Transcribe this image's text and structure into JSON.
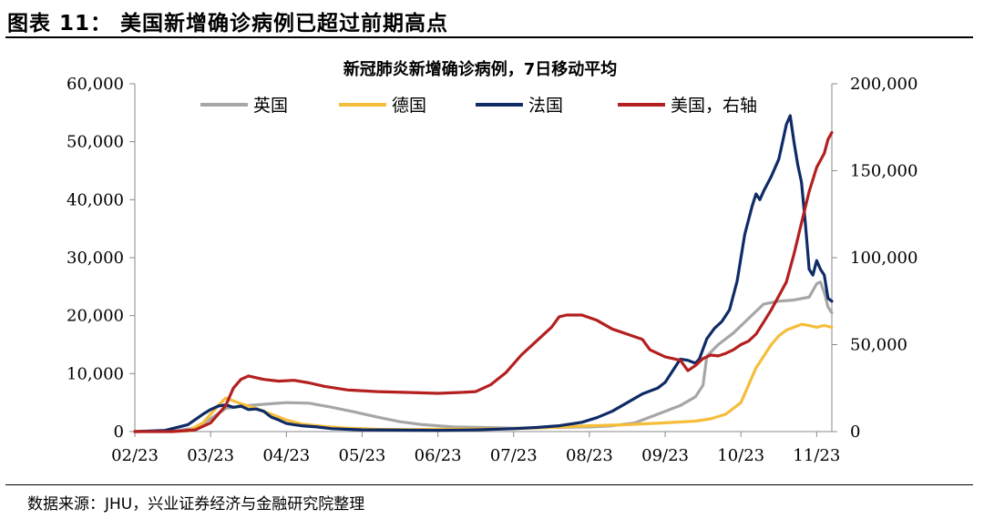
{
  "figure": {
    "title": "图表 11：  美国新增确诊病例已超过前期高点",
    "source": "数据来源：JHU，兴业证券经济与金融研究院整理"
  },
  "chart_data": {
    "type": "line",
    "title": "新冠肺炎新增确诊病例，7日移动平均",
    "xlabel": "",
    "ylabel": "",
    "x_tick_labels": [
      "02/23",
      "03/23",
      "04/23",
      "05/23",
      "06/23",
      "07/23",
      "08/23",
      "09/23",
      "10/23",
      "11/23"
    ],
    "x_ticks_month": [
      0,
      1,
      2,
      3,
      4,
      5,
      6,
      7,
      8,
      9
    ],
    "xlim_month": [
      0,
      9.2
    ],
    "left_ylim": [
      0,
      60000
    ],
    "left_yticks": [
      "0",
      "10,000",
      "20,000",
      "30,000",
      "40,000",
      "50,000",
      "60,000"
    ],
    "right_ylim": [
      0,
      200000
    ],
    "right_yticks": [
      "0",
      "50,000",
      "100,000",
      "150,000",
      "200,000"
    ],
    "grid": false,
    "legend_position": "top",
    "series": [
      {
        "name": "英国",
        "axis": "left",
        "color": "#a6a6a6",
        "points": [
          [
            0,
            0
          ],
          [
            0.5,
            100
          ],
          [
            0.8,
            600
          ],
          [
            1.0,
            2200
          ],
          [
            1.2,
            4000
          ],
          [
            1.5,
            4500
          ],
          [
            1.8,
            4800
          ],
          [
            2.0,
            5000
          ],
          [
            2.3,
            4900
          ],
          [
            2.6,
            4200
          ],
          [
            2.9,
            3400
          ],
          [
            3.2,
            2500
          ],
          [
            3.5,
            1700
          ],
          [
            3.8,
            1200
          ],
          [
            4.2,
            800
          ],
          [
            4.6,
            700
          ],
          [
            5.0,
            600
          ],
          [
            5.5,
            700
          ],
          [
            6.0,
            800
          ],
          [
            6.3,
            1000
          ],
          [
            6.6,
            1500
          ],
          [
            6.8,
            2500
          ],
          [
            7.0,
            3500
          ],
          [
            7.2,
            4500
          ],
          [
            7.4,
            6000
          ],
          [
            7.5,
            8000
          ],
          [
            7.55,
            13000
          ],
          [
            7.7,
            15000
          ],
          [
            7.9,
            17000
          ],
          [
            8.1,
            19500
          ],
          [
            8.3,
            22000
          ],
          [
            8.5,
            22500
          ],
          [
            8.7,
            22700
          ],
          [
            8.9,
            23200
          ],
          [
            9.0,
            25500
          ],
          [
            9.05,
            25800
          ],
          [
            9.1,
            24000
          ],
          [
            9.15,
            21500
          ],
          [
            9.2,
            20500
          ]
        ]
      },
      {
        "name": "德国",
        "axis": "left",
        "color": "#f5bd3a",
        "points": [
          [
            0,
            0
          ],
          [
            0.7,
            100
          ],
          [
            0.9,
            1500
          ],
          [
            1.1,
            4500
          ],
          [
            1.2,
            5800
          ],
          [
            1.4,
            4800
          ],
          [
            1.6,
            4000
          ],
          [
            1.8,
            3000
          ],
          [
            2.0,
            2000
          ],
          [
            2.2,
            1300
          ],
          [
            2.5,
            900
          ],
          [
            2.8,
            600
          ],
          [
            3.2,
            400
          ],
          [
            3.6,
            350
          ],
          [
            4.0,
            400
          ],
          [
            4.5,
            450
          ],
          [
            5.0,
            500
          ],
          [
            5.5,
            700
          ],
          [
            6.0,
            1000
          ],
          [
            6.5,
            1200
          ],
          [
            7.0,
            1500
          ],
          [
            7.4,
            1800
          ],
          [
            7.6,
            2200
          ],
          [
            7.8,
            3000
          ],
          [
            8.0,
            5000
          ],
          [
            8.1,
            8000
          ],
          [
            8.2,
            11000
          ],
          [
            8.3,
            13000
          ],
          [
            8.4,
            15000
          ],
          [
            8.5,
            16500
          ],
          [
            8.6,
            17500
          ],
          [
            8.7,
            18000
          ],
          [
            8.8,
            18500
          ],
          [
            8.9,
            18300
          ],
          [
            9.0,
            18000
          ],
          [
            9.1,
            18300
          ],
          [
            9.2,
            18000
          ]
        ]
      },
      {
        "name": "法国",
        "axis": "left",
        "color": "#0f2b66",
        "points": [
          [
            0,
            0
          ],
          [
            0.4,
            200
          ],
          [
            0.7,
            1200
          ],
          [
            0.9,
            3000
          ],
          [
            1.0,
            3800
          ],
          [
            1.1,
            4400
          ],
          [
            1.2,
            4600
          ],
          [
            1.3,
            4200
          ],
          [
            1.4,
            4400
          ],
          [
            1.5,
            3800
          ],
          [
            1.6,
            3900
          ],
          [
            1.7,
            3500
          ],
          [
            1.8,
            2500
          ],
          [
            1.9,
            2000
          ],
          [
            2.0,
            1400
          ],
          [
            2.1,
            1200
          ],
          [
            2.2,
            1000
          ],
          [
            2.4,
            800
          ],
          [
            2.6,
            500
          ],
          [
            2.8,
            400
          ],
          [
            3.0,
            300
          ],
          [
            3.5,
            250
          ],
          [
            4.0,
            200
          ],
          [
            4.5,
            300
          ],
          [
            5.0,
            500
          ],
          [
            5.3,
            700
          ],
          [
            5.6,
            1000
          ],
          [
            5.9,
            1600
          ],
          [
            6.1,
            2400
          ],
          [
            6.3,
            3500
          ],
          [
            6.5,
            5000
          ],
          [
            6.7,
            6500
          ],
          [
            6.9,
            7500
          ],
          [
            7.0,
            8500
          ],
          [
            7.1,
            10500
          ],
          [
            7.2,
            12500
          ],
          [
            7.3,
            12300
          ],
          [
            7.4,
            11800
          ],
          [
            7.45,
            12500
          ],
          [
            7.55,
            16000
          ],
          [
            7.65,
            17800
          ],
          [
            7.75,
            19000
          ],
          [
            7.85,
            21000
          ],
          [
            7.95,
            26000
          ],
          [
            8.05,
            34000
          ],
          [
            8.15,
            39000
          ],
          [
            8.2,
            41000
          ],
          [
            8.25,
            40000
          ],
          [
            8.3,
            41500
          ],
          [
            8.4,
            44000
          ],
          [
            8.5,
            47000
          ],
          [
            8.55,
            50000
          ],
          [
            8.6,
            53000
          ],
          [
            8.65,
            54500
          ],
          [
            8.7,
            50000
          ],
          [
            8.75,
            46000
          ],
          [
            8.8,
            43000
          ],
          [
            8.85,
            36000
          ],
          [
            8.9,
            28000
          ],
          [
            8.95,
            27000
          ],
          [
            9.0,
            29500
          ],
          [
            9.05,
            28000
          ],
          [
            9.1,
            27000
          ],
          [
            9.15,
            23000
          ],
          [
            9.2,
            22500
          ]
        ]
      },
      {
        "name": "美国，右轴",
        "axis": "right",
        "color": "#b3201f",
        "points": [
          [
            0,
            0
          ],
          [
            0.5,
            0
          ],
          [
            0.8,
            1000
          ],
          [
            1.0,
            5000
          ],
          [
            1.2,
            15000
          ],
          [
            1.3,
            25000
          ],
          [
            1.4,
            30000
          ],
          [
            1.5,
            32000
          ],
          [
            1.7,
            30000
          ],
          [
            1.9,
            29000
          ],
          [
            2.1,
            29500
          ],
          [
            2.3,
            28000
          ],
          [
            2.5,
            26000
          ],
          [
            2.8,
            24000
          ],
          [
            3.2,
            23000
          ],
          [
            3.6,
            22500
          ],
          [
            4.0,
            22000
          ],
          [
            4.3,
            22500
          ],
          [
            4.5,
            23000
          ],
          [
            4.7,
            27000
          ],
          [
            4.9,
            34000
          ],
          [
            5.1,
            44000
          ],
          [
            5.3,
            52000
          ],
          [
            5.5,
            60000
          ],
          [
            5.6,
            66000
          ],
          [
            5.7,
            67000
          ],
          [
            5.9,
            67000
          ],
          [
            6.1,
            64000
          ],
          [
            6.3,
            59000
          ],
          [
            6.5,
            56000
          ],
          [
            6.7,
            53000
          ],
          [
            6.8,
            47000
          ],
          [
            7.0,
            43000
          ],
          [
            7.2,
            41000
          ],
          [
            7.3,
            35000
          ],
          [
            7.4,
            38000
          ],
          [
            7.5,
            42000
          ],
          [
            7.6,
            44000
          ],
          [
            7.7,
            43500
          ],
          [
            7.8,
            45000
          ],
          [
            7.9,
            47000
          ],
          [
            8.0,
            50000
          ],
          [
            8.1,
            52000
          ],
          [
            8.2,
            56000
          ],
          [
            8.3,
            63000
          ],
          [
            8.4,
            70000
          ],
          [
            8.5,
            78000
          ],
          [
            8.6,
            86000
          ],
          [
            8.7,
            102000
          ],
          [
            8.8,
            120000
          ],
          [
            8.9,
            138000
          ],
          [
            9.0,
            152000
          ],
          [
            9.1,
            160000
          ],
          [
            9.15,
            168000
          ],
          [
            9.2,
            172000
          ]
        ]
      }
    ]
  }
}
